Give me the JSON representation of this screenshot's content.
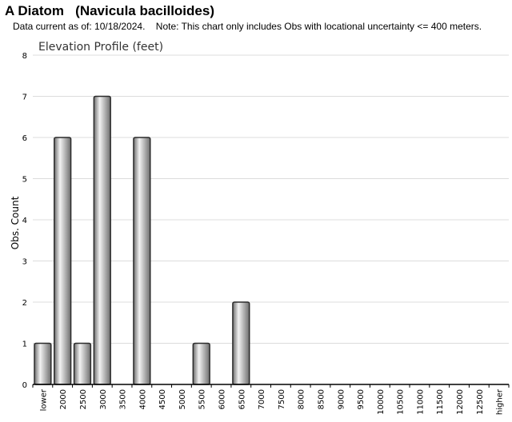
{
  "header": {
    "title": "A Diatom   (Navicula bacilloides)",
    "subtitle": "Data current as of: 10/18/2024.    Note: This chart only includes Obs with locational uncertainty <= 400 meters."
  },
  "chart_data": {
    "type": "bar",
    "title": "Elevation Profile (feet)",
    "xlabel": "",
    "ylabel": "Obs. Count",
    "ylim": [
      0,
      8
    ],
    "yticks": [
      0,
      1,
      2,
      3,
      4,
      5,
      6,
      7,
      8
    ],
    "grid": true,
    "categories": [
      "lower",
      "2000",
      "2500",
      "3000",
      "3500",
      "4000",
      "4500",
      "5000",
      "5500",
      "6000",
      "6500",
      "7000",
      "7500",
      "8000",
      "8500",
      "9000",
      "9500",
      "10000",
      "10500",
      "11000",
      "11500",
      "12000",
      "12500",
      "higher"
    ],
    "values": [
      1,
      6,
      1,
      7,
      0,
      6,
      0,
      0,
      1,
      0,
      2,
      0,
      0,
      0,
      0,
      0,
      0,
      0,
      0,
      0,
      0,
      0,
      0,
      0
    ],
    "colors": {
      "bar_light": "#f2f2f2",
      "bar_dark": "#6e6e6e",
      "bar_stroke": "#2b2b2b",
      "grid": "#dcdcdc",
      "axis": "#000000"
    }
  }
}
